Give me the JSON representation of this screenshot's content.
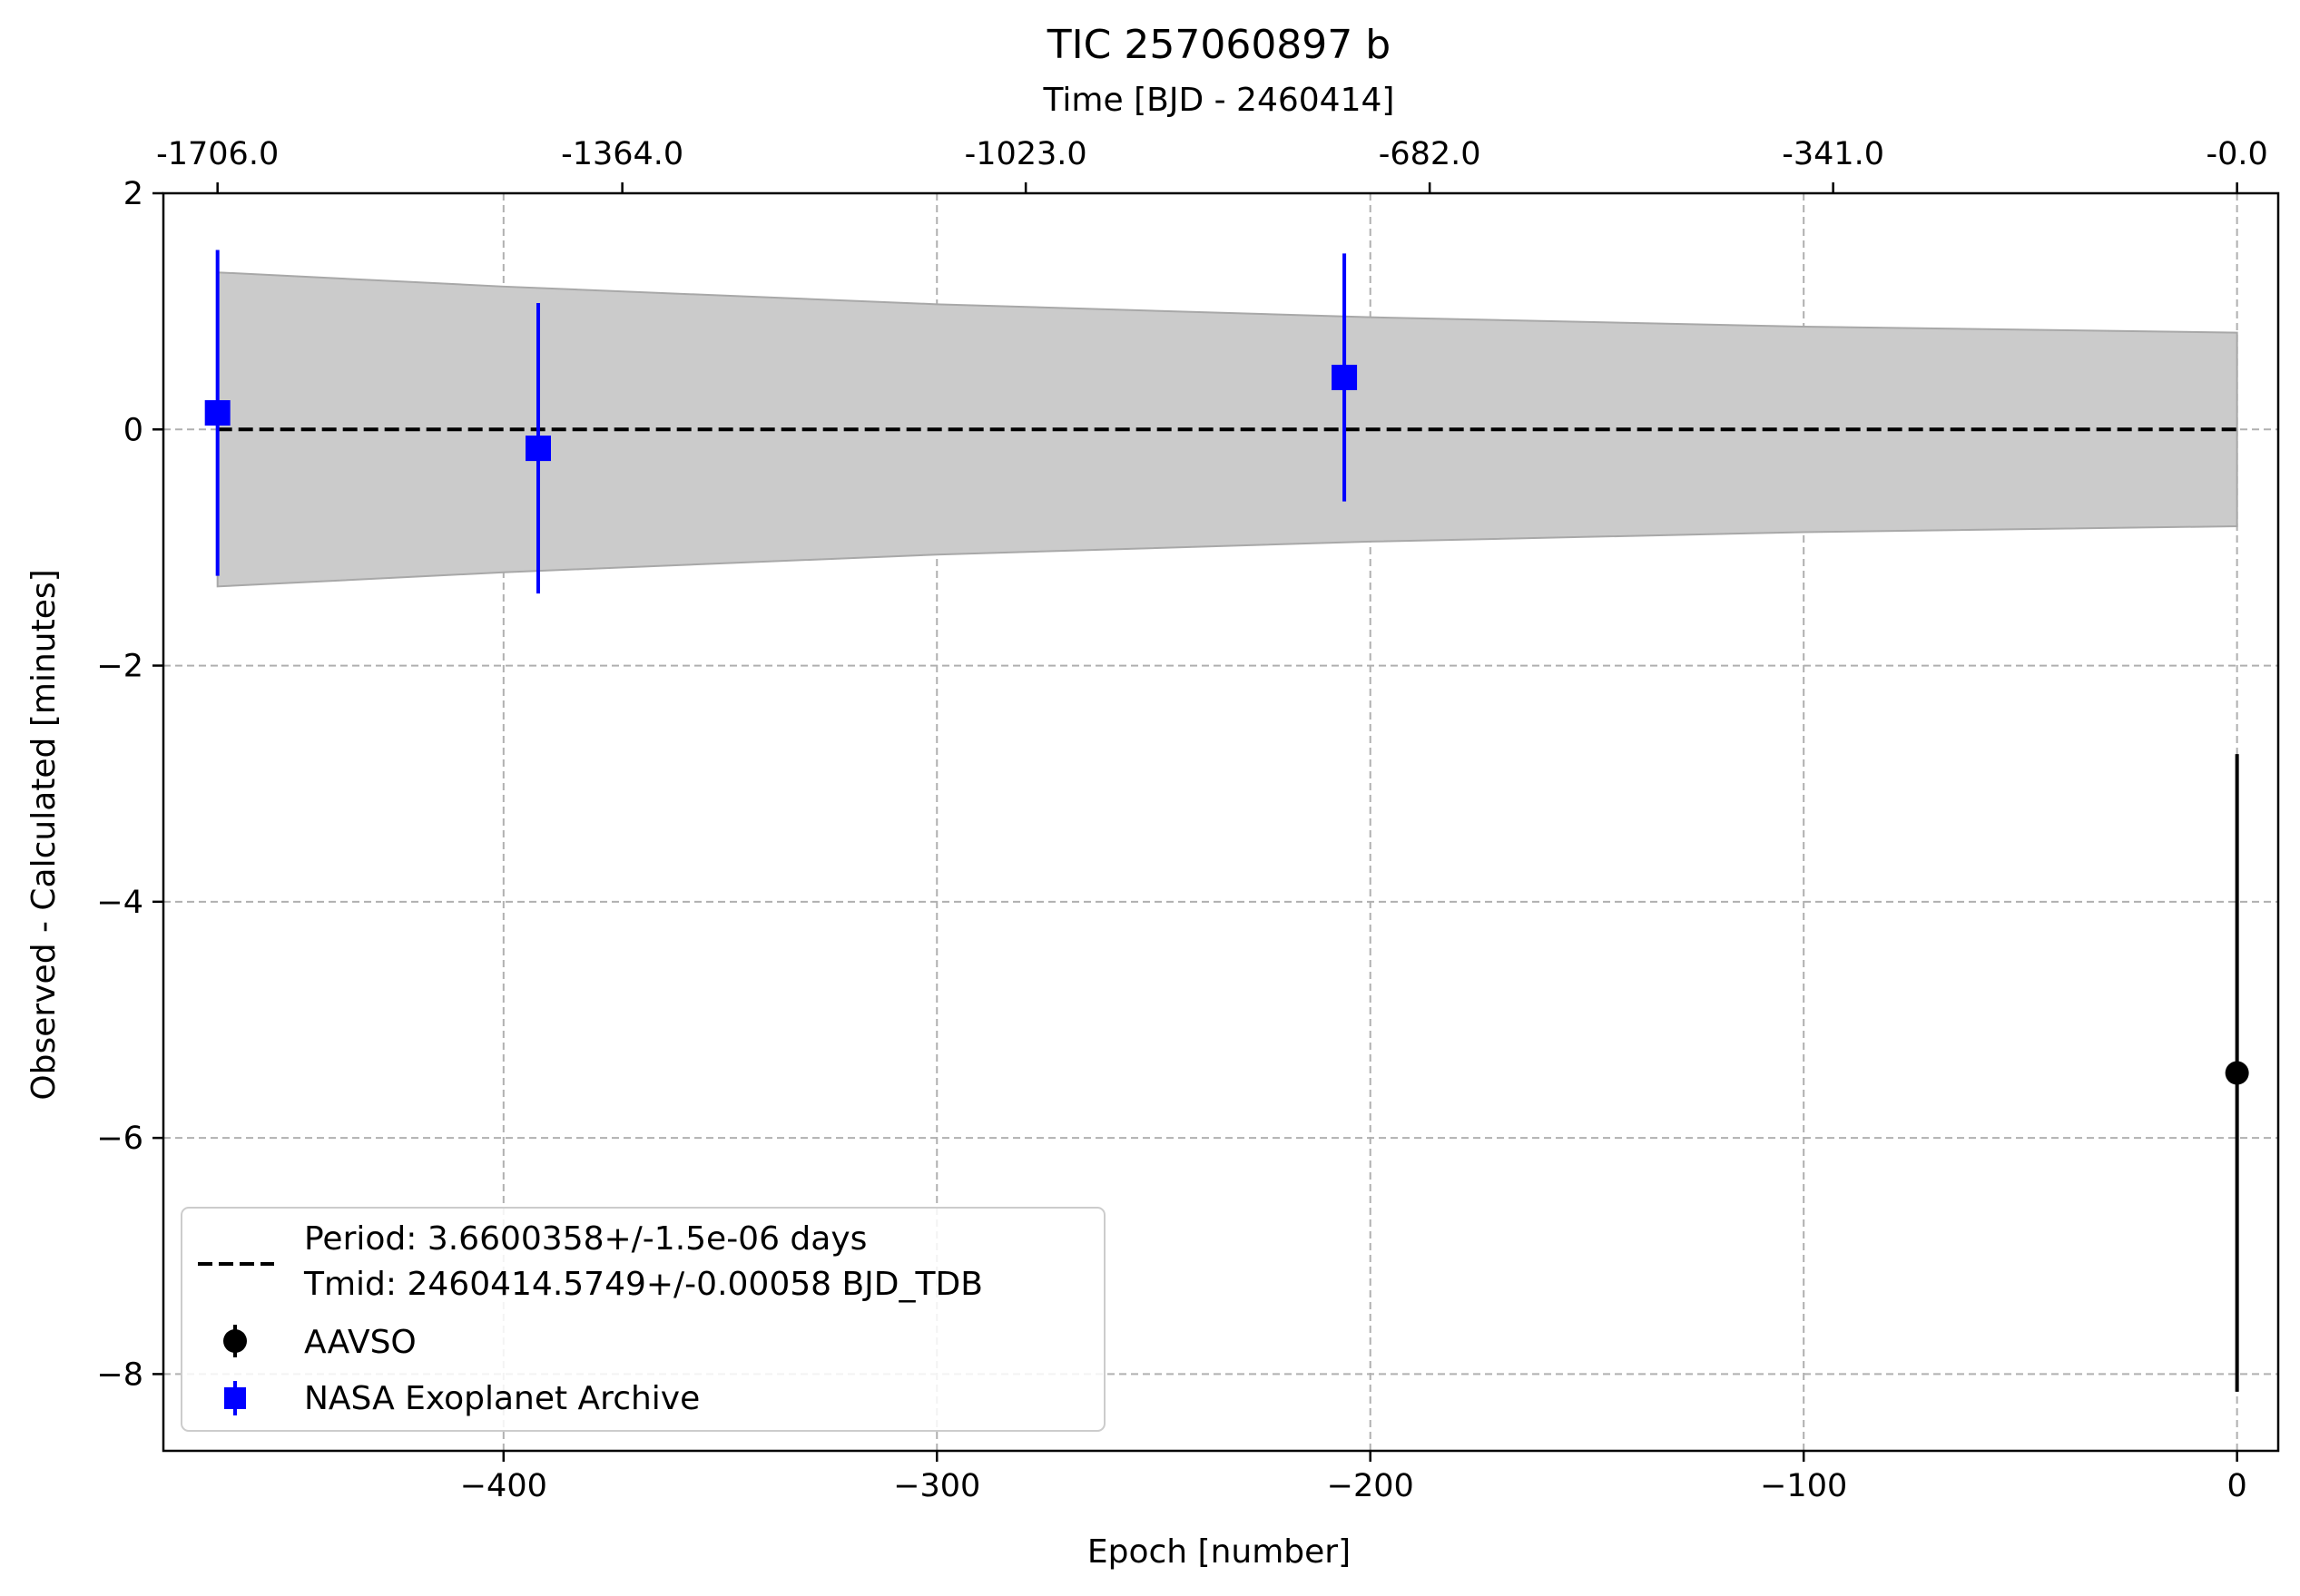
{
  "chart_data": {
    "type": "scatter",
    "title": "TIC 257060897 b",
    "xlabel": "Epoch [number]",
    "ylabel": "Observed - Calculated [minutes]",
    "x2label": "Time [BJD - 2460414]",
    "xlim": [
      -478.5,
      9.5
    ],
    "ylim": [
      -8.65,
      2.0
    ],
    "grid": true,
    "legend_position": "lower-left",
    "x_ticks": [
      -400,
      -300,
      -200,
      -100,
      0
    ],
    "x_tick_labels": [
      "−400",
      "−300",
      "−200",
      "−100",
      "0"
    ],
    "y_ticks": [
      2,
      0,
      -2,
      -4,
      -6,
      -8
    ],
    "y_tick_labels": [
      "2",
      "0",
      "−2",
      "−4",
      "−6",
      "−8"
    ],
    "x2_ticks": [
      -466,
      -372.6,
      -279.5,
      -186.3,
      -93.2,
      0
    ],
    "x2_tick_labels": [
      "-1706.0",
      "-1364.0",
      "-1023.0",
      "-682.0",
      "-341.0",
      "-0.0"
    ],
    "uncertainty_band": {
      "x": [
        -466,
        -400,
        -300,
        -200,
        -100,
        0
      ],
      "lower": [
        -1.33,
        -1.21,
        -1.06,
        -0.95,
        -0.87,
        -0.82
      ],
      "upper": [
        1.33,
        1.21,
        1.06,
        0.95,
        0.87,
        0.82
      ],
      "color": "#cbcbcb"
    },
    "fit_line": {
      "x": [
        -466,
        0
      ],
      "y": [
        0,
        0
      ],
      "color": "#000000",
      "style": "dashed"
    },
    "series": [
      {
        "name": "AAVSO",
        "marker": "circle",
        "color": "#000000",
        "points": [
          {
            "x": 0,
            "y": -5.45,
            "yerr": 2.7
          }
        ]
      },
      {
        "name": "NASA Exoplanet Archive",
        "marker": "square",
        "color": "#0000ff",
        "points": [
          {
            "x": -466,
            "y": 0.14,
            "yerr": 1.38
          },
          {
            "x": -392,
            "y": -0.16,
            "yerr": 1.23
          },
          {
            "x": -206,
            "y": 0.44,
            "yerr": 1.05
          }
        ]
      }
    ],
    "legend": {
      "fit_label_line1": "Period: 3.6600358+/-1.5e-06 days",
      "fit_label_line2": "Tmid: 2460414.5749+/-0.00058 BJD_TDB",
      "aavso_label": "AAVSO",
      "nasa_label": "NASA Exoplanet Archive"
    }
  }
}
